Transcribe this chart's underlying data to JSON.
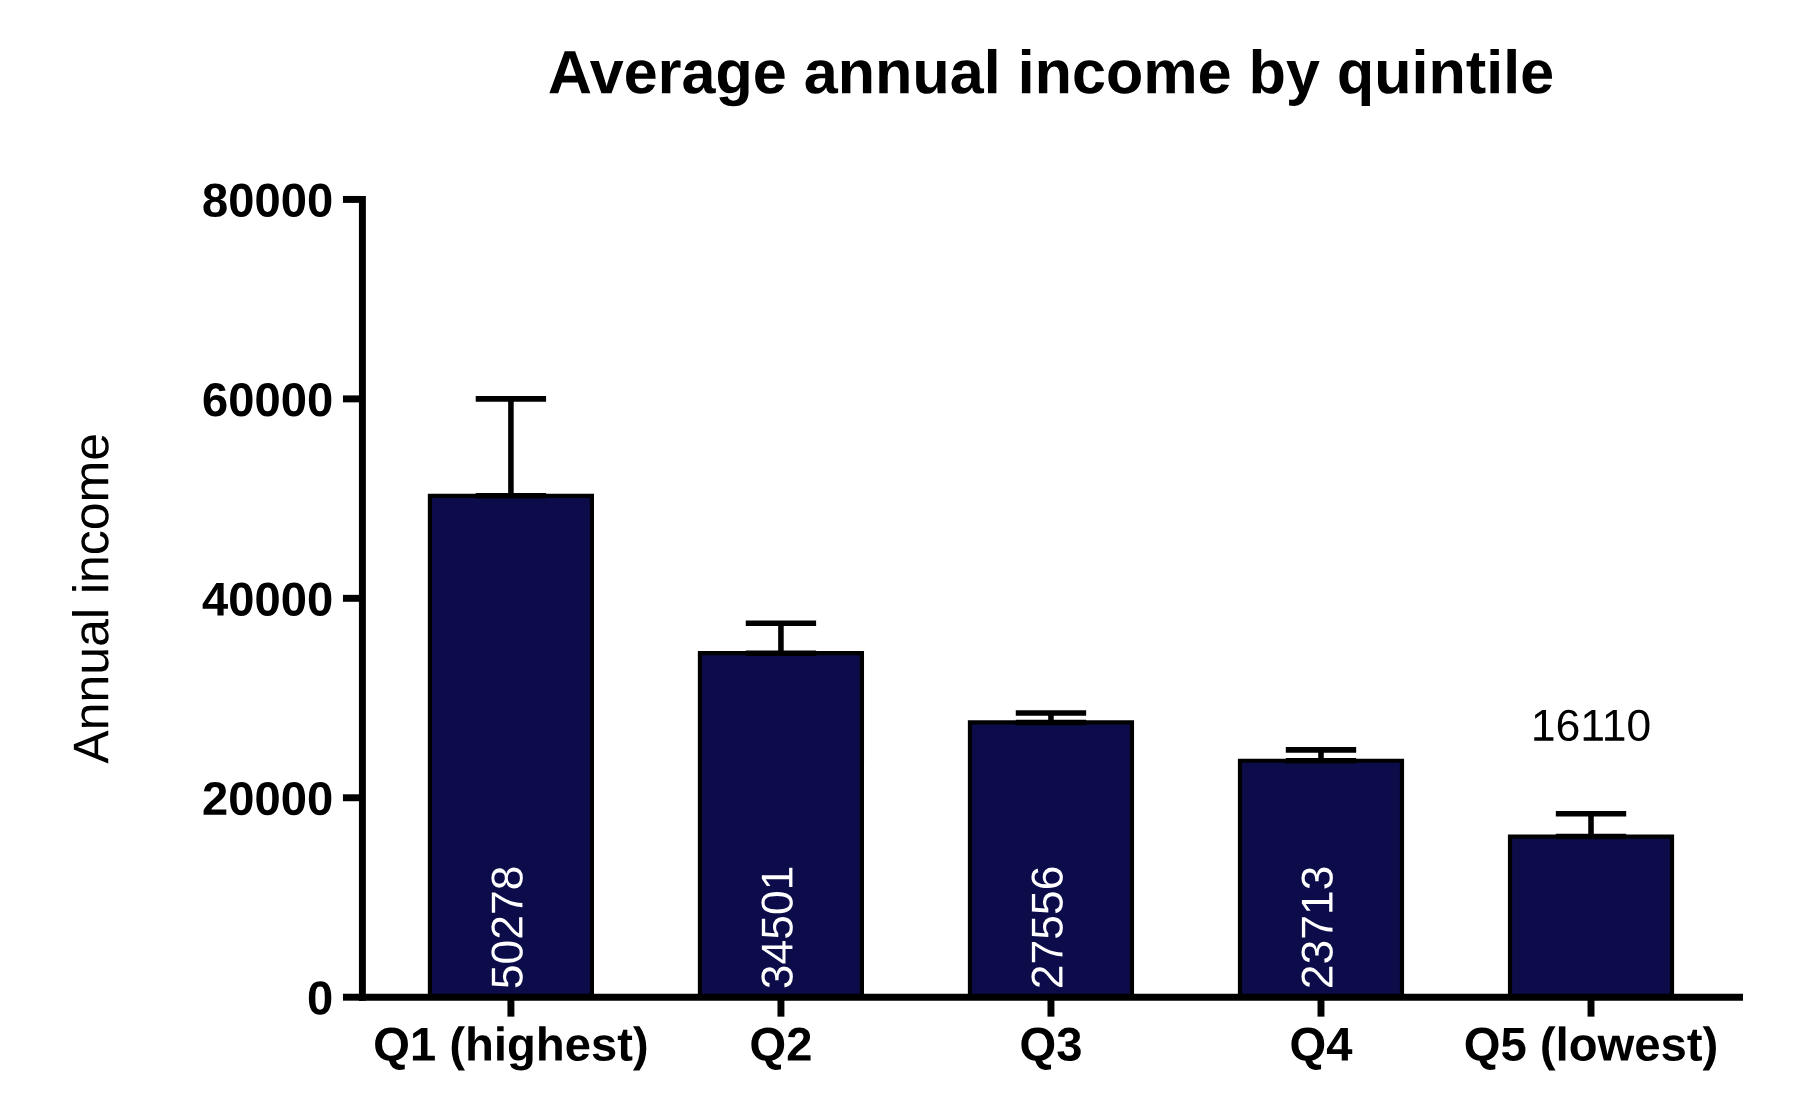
{
  "chart_data": {
    "type": "bar",
    "title": "Average annual income by quintile",
    "ylabel": "Annual income",
    "categories": [
      "Q1 (highest)",
      "Q2",
      "Q3",
      "Q4",
      "Q5 (lowest)"
    ],
    "values": [
      50278,
      34501,
      27556,
      23713,
      16110
    ],
    "errors": [
      [
        50278,
        60000
      ],
      [
        34501,
        37500
      ],
      [
        27556,
        28500
      ],
      [
        23713,
        24800
      ],
      [
        16110,
        18400
      ]
    ],
    "color": "#0c0c4a",
    "ylim": [
      0,
      80000
    ],
    "yticks": [
      0,
      20000,
      40000,
      60000,
      80000
    ],
    "data_labels": true,
    "grid": false,
    "legend": false
  }
}
